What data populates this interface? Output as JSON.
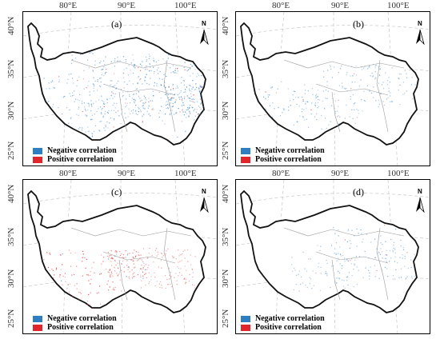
{
  "colors": {
    "negative": "#2f7ec1",
    "positive": "#e0262b"
  },
  "ticks": {
    "lon": [
      "80°E",
      "90°E",
      "100°E"
    ],
    "lat": [
      "40°N",
      "35°N",
      "30°N",
      "25°N"
    ]
  },
  "north_label": "N",
  "legend": {
    "negative": "Negative correlation",
    "positive": "Positive correlation"
  },
  "panels": [
    {
      "label": "(a)",
      "dominant": "negative",
      "intensity": 0.85
    },
    {
      "label": "(b)",
      "dominant": "negative",
      "intensity": 0.35
    },
    {
      "label": "(c)",
      "dominant": "positive",
      "intensity": 0.45
    },
    {
      "label": "(d)",
      "dominant": "negative",
      "intensity": 0.3
    }
  ]
}
